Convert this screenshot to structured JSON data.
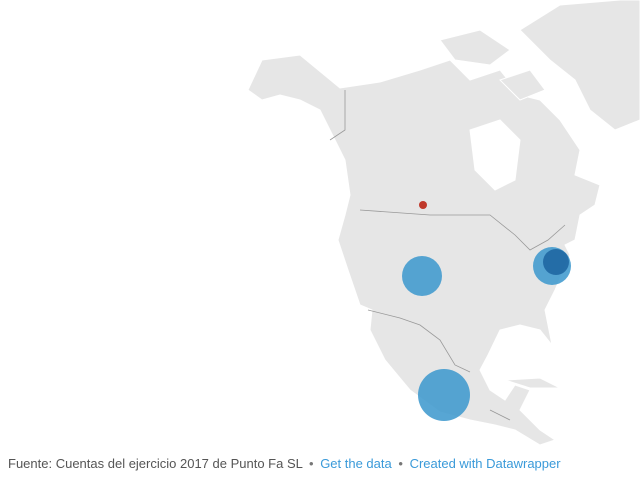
{
  "footer": {
    "source": "Fuente: Cuentas del ejercicio 2017 de Punto Fa SL",
    "separator": "•",
    "get_data": "Get the data",
    "created_with": "Created with Datawrapper"
  }
}
